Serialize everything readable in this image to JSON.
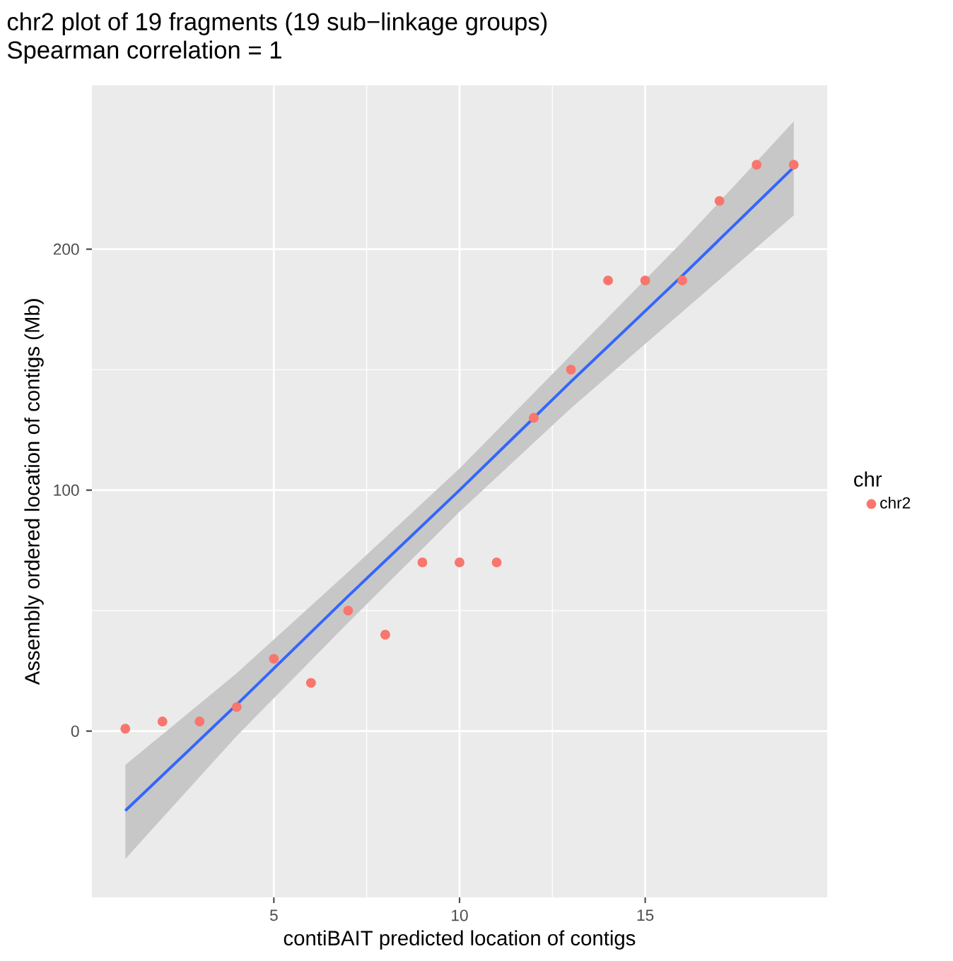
{
  "chart_data": {
    "type": "scatter",
    "title": "chr2 plot of 19 fragments (19 sub−linkage groups)",
    "subtitle": "Spearman correlation = 1",
    "xlabel": "contiBAIT predicted location of contigs",
    "ylabel": "Assembly ordered location of contigs (Mb)",
    "legend_title": "chr",
    "x": [
      1,
      2,
      3,
      4,
      5,
      6,
      7,
      8,
      9,
      10,
      11,
      12,
      13,
      14,
      15,
      16,
      17,
      18,
      19
    ],
    "series": [
      {
        "name": "chr2",
        "color": "#f8766d",
        "marker": "circle",
        "values": [
          1,
          4,
          4,
          10,
          30,
          20,
          50,
          40,
          70,
          70,
          70,
          130,
          150,
          187,
          187,
          187,
          220,
          235,
          235
        ]
      },
      {
        "type": "line",
        "color": "#3366ff",
        "x": [
          1,
          4,
          7,
          10,
          13,
          16,
          19
        ],
        "values": [
          -33,
          11,
          56,
          100,
          145,
          189,
          234
        ],
        "lower": [
          -53,
          -2,
          45,
          91,
          134,
          174,
          214
        ],
        "upper": [
          -14,
          24,
          66,
          109,
          156,
          203,
          253
        ]
      }
    ],
    "xlim": [
      0.1,
      19.9
    ],
    "ylim": [
      -69,
      268
    ],
    "xticks": [
      5,
      10,
      15
    ],
    "yticks": [
      0,
      100,
      200
    ],
    "grid": true,
    "legend": "right"
  }
}
